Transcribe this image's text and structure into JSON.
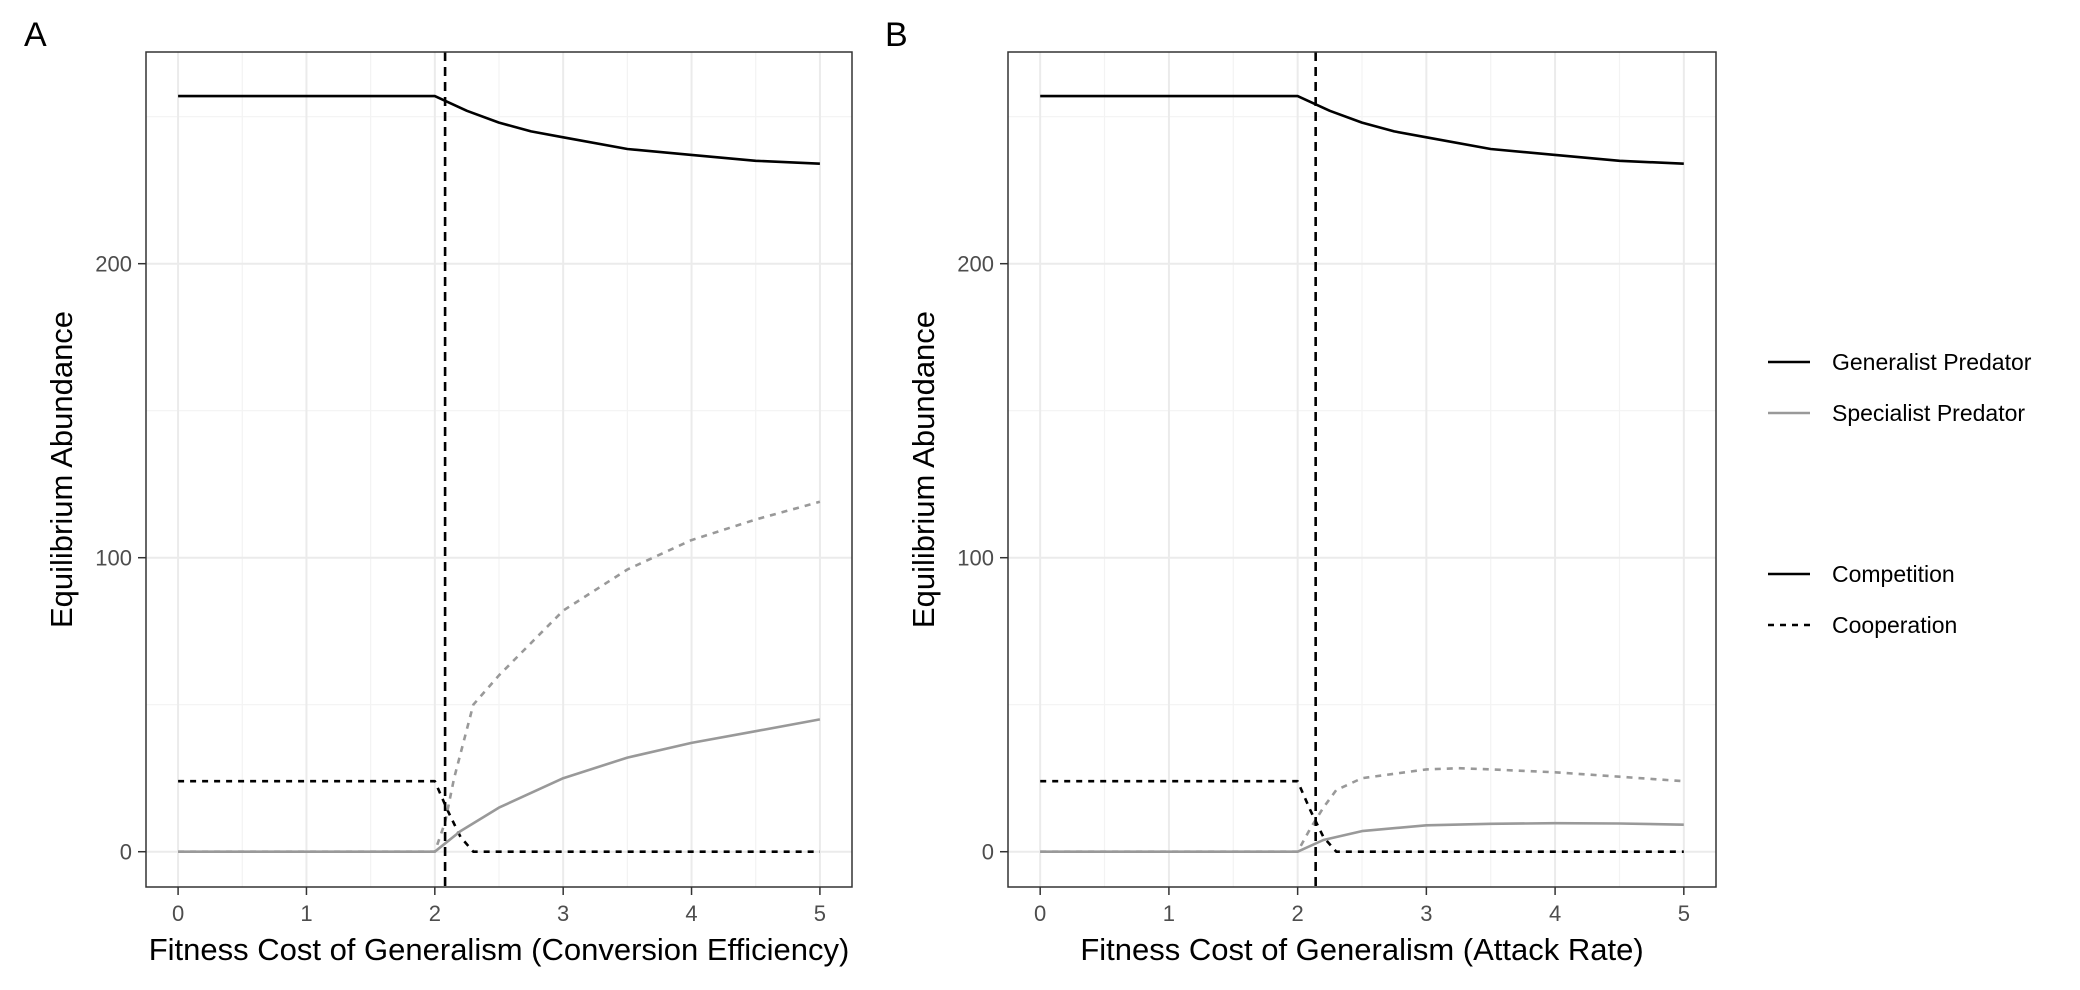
{
  "chart_data": [
    {
      "type": "line",
      "panel_label": "A",
      "xlabel": "Fitness Cost of Generalism (Conversion Efficiency)",
      "ylabel": "Equilibrium Abundance",
      "xlim": [
        -0.25,
        5.25
      ],
      "ylim": [
        -12,
        272
      ],
      "x_ticks": [
        0,
        1,
        2,
        3,
        4,
        5
      ],
      "y_ticks": [
        0,
        100,
        200
      ],
      "grid": true,
      "vline": {
        "x": 2.08,
        "style": "dashed"
      },
      "series": [
        {
          "species": "Generalist Predator",
          "interaction": "Competition",
          "x": [
            0,
            2,
            2.25,
            2.5,
            2.75,
            3,
            3.5,
            4,
            4.5,
            5
          ],
          "y": [
            257,
            257,
            252,
            248,
            245,
            243,
            239,
            237,
            235,
            234
          ]
        },
        {
          "species": "Generalist Predator",
          "interaction": "Cooperation",
          "x": [
            0,
            2,
            2.1,
            2.2,
            2.3,
            3,
            4,
            5
          ],
          "y": [
            24,
            24,
            14,
            5,
            0,
            0,
            0,
            0
          ]
        },
        {
          "species": "Specialist Predator",
          "interaction": "Competition",
          "x": [
            0,
            2,
            2.2,
            2.5,
            3,
            3.5,
            4,
            4.5,
            5
          ],
          "y": [
            0,
            0,
            7,
            15,
            25,
            32,
            37,
            41,
            45
          ]
        },
        {
          "species": "Specialist Predator",
          "interaction": "Cooperation",
          "x": [
            0,
            2,
            2.08,
            2.15,
            2.3,
            2.5,
            3,
            3.5,
            4,
            4.5,
            5
          ],
          "y": [
            0,
            0,
            10,
            25,
            50,
            60,
            82,
            96,
            106,
            113,
            119
          ]
        }
      ]
    },
    {
      "type": "line",
      "panel_label": "B",
      "xlabel": "Fitness Cost of Generalism (Attack Rate)",
      "ylabel": "Equilibrium Abundance",
      "xlim": [
        -0.25,
        5.25
      ],
      "ylim": [
        -12,
        272
      ],
      "x_ticks": [
        0,
        1,
        2,
        3,
        4,
        5
      ],
      "y_ticks": [
        0,
        100,
        200
      ],
      "grid": true,
      "vline": {
        "x": 2.14,
        "style": "dashed"
      },
      "series": [
        {
          "species": "Generalist Predator",
          "interaction": "Competition",
          "x": [
            0,
            2,
            2.25,
            2.5,
            2.75,
            3,
            3.5,
            4,
            4.5,
            5
          ],
          "y": [
            257,
            257,
            252,
            248,
            245,
            243,
            239,
            237,
            235,
            234
          ]
        },
        {
          "species": "Generalist Predator",
          "interaction": "Cooperation",
          "x": [
            0,
            2,
            2.1,
            2.2,
            2.3,
            3,
            4,
            5
          ],
          "y": [
            24,
            24,
            14,
            5,
            0,
            0,
            0,
            0
          ]
        },
        {
          "species": "Specialist Predator",
          "interaction": "Competition",
          "x": [
            0,
            2,
            2.2,
            2.5,
            3,
            3.5,
            4,
            4.5,
            5
          ],
          "y": [
            0,
            0,
            4,
            7,
            9,
            9.5,
            9.7,
            9.6,
            9.2
          ]
        },
        {
          "species": "Specialist Predator",
          "interaction": "Cooperation",
          "x": [
            0,
            2,
            2.1,
            2.2,
            2.3,
            2.5,
            3,
            3.25,
            3.5,
            4,
            4.5,
            5
          ],
          "y": [
            0,
            0,
            8,
            15,
            21,
            25,
            28,
            28.4,
            28,
            27,
            25.5,
            24
          ]
        }
      ]
    }
  ],
  "legend": {
    "placement": "right",
    "colour_groups": [
      {
        "label": "Generalist Predator",
        "color": "#000000"
      },
      {
        "label": "Specialist Predator",
        "color": "#999999"
      }
    ],
    "linetype_groups": [
      {
        "label": "Competition",
        "dash": "solid"
      },
      {
        "label": "Cooperation",
        "dash": "dashed"
      }
    ]
  },
  "colors": {
    "Generalist Predator": "#000000",
    "Specialist Predator": "#999999",
    "vline": "#000000"
  }
}
